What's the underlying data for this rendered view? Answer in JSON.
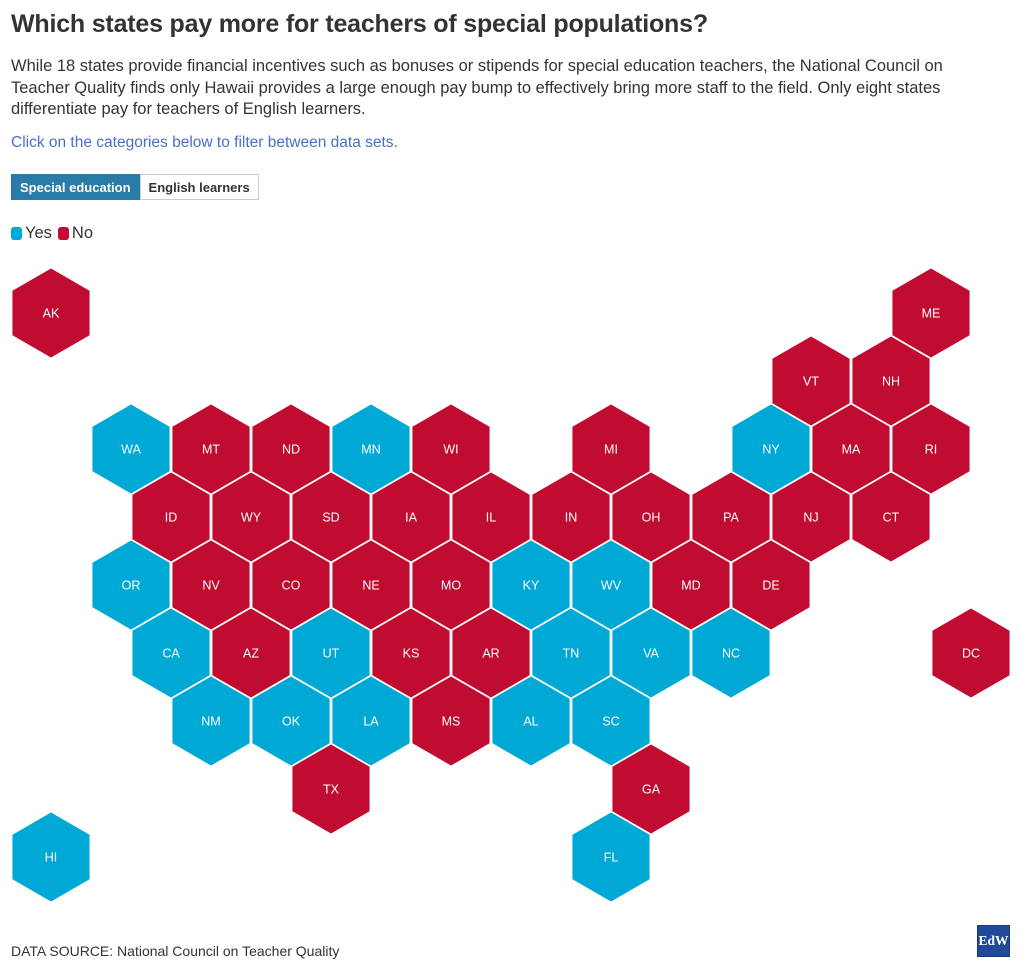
{
  "title": "Which states pay more for teachers of special populations?",
  "subtitle": "While 18 states provide financial incentives such as bonuses or stipends for special education teachers, the National Council on Teacher Quality finds only Hawaii provides a large enough pay bump to effectively bring more staff to the field. Only eight states differentiate pay for teachers of English learners.",
  "hint": "Click on the categories below to filter between data sets.",
  "tabs": [
    {
      "label": "Special education",
      "active": true
    },
    {
      "label": "English learners",
      "active": false
    }
  ],
  "legend": [
    {
      "label": "Yes",
      "color": "#00a8d6"
    },
    {
      "label": "No",
      "color": "#c00c30"
    }
  ],
  "colors": {
    "yes": "#00a8d6",
    "no": "#c00c30",
    "tab_active": "#2a7ca8",
    "hint": "#4a6fc4",
    "logo": "#1f4a9a"
  },
  "states": [
    {
      "abbr": "AK",
      "value": "No"
    },
    {
      "abbr": "ME",
      "value": "No"
    },
    {
      "abbr": "VT",
      "value": "No"
    },
    {
      "abbr": "NH",
      "value": "No"
    },
    {
      "abbr": "WA",
      "value": "Yes"
    },
    {
      "abbr": "MT",
      "value": "No"
    },
    {
      "abbr": "ND",
      "value": "No"
    },
    {
      "abbr": "MN",
      "value": "Yes"
    },
    {
      "abbr": "WI",
      "value": "No"
    },
    {
      "abbr": "MI",
      "value": "No"
    },
    {
      "abbr": "NY",
      "value": "Yes"
    },
    {
      "abbr": "MA",
      "value": "No"
    },
    {
      "abbr": "RI",
      "value": "No"
    },
    {
      "abbr": "ID",
      "value": "No"
    },
    {
      "abbr": "WY",
      "value": "No"
    },
    {
      "abbr": "SD",
      "value": "No"
    },
    {
      "abbr": "IA",
      "value": "No"
    },
    {
      "abbr": "IL",
      "value": "No"
    },
    {
      "abbr": "IN",
      "value": "No"
    },
    {
      "abbr": "OH",
      "value": "No"
    },
    {
      "abbr": "PA",
      "value": "No"
    },
    {
      "abbr": "NJ",
      "value": "No"
    },
    {
      "abbr": "CT",
      "value": "No"
    },
    {
      "abbr": "OR",
      "value": "Yes"
    },
    {
      "abbr": "NV",
      "value": "No"
    },
    {
      "abbr": "CO",
      "value": "No"
    },
    {
      "abbr": "NE",
      "value": "No"
    },
    {
      "abbr": "MO",
      "value": "No"
    },
    {
      "abbr": "KY",
      "value": "Yes"
    },
    {
      "abbr": "WV",
      "value": "Yes"
    },
    {
      "abbr": "MD",
      "value": "No"
    },
    {
      "abbr": "DE",
      "value": "No"
    },
    {
      "abbr": "CA",
      "value": "Yes"
    },
    {
      "abbr": "AZ",
      "value": "No"
    },
    {
      "abbr": "UT",
      "value": "Yes"
    },
    {
      "abbr": "KS",
      "value": "No"
    },
    {
      "abbr": "AR",
      "value": "No"
    },
    {
      "abbr": "TN",
      "value": "Yes"
    },
    {
      "abbr": "VA",
      "value": "Yes"
    },
    {
      "abbr": "NC",
      "value": "Yes"
    },
    {
      "abbr": "DC",
      "value": "No"
    },
    {
      "abbr": "NM",
      "value": "Yes"
    },
    {
      "abbr": "OK",
      "value": "Yes"
    },
    {
      "abbr": "LA",
      "value": "Yes"
    },
    {
      "abbr": "MS",
      "value": "No"
    },
    {
      "abbr": "AL",
      "value": "Yes"
    },
    {
      "abbr": "SC",
      "value": "Yes"
    },
    {
      "abbr": "TX",
      "value": "No"
    },
    {
      "abbr": "GA",
      "value": "No"
    },
    {
      "abbr": "HI",
      "value": "Yes"
    },
    {
      "abbr": "FL",
      "value": "Yes"
    }
  ],
  "source": "DATA SOURCE: National Council on Teacher Quality",
  "logo_text": "EdW"
}
